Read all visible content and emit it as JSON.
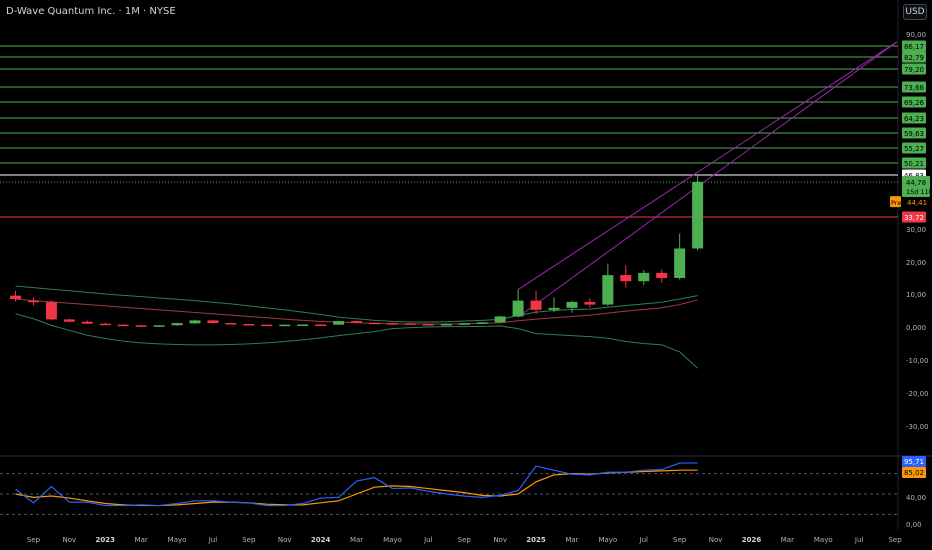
{
  "header": {
    "title": "D-Wave Quantum Inc. · 1M · NYSE",
    "currency_label": "USD"
  },
  "colors": {
    "up": "#4caf50",
    "down": "#f23645",
    "level_line": "#4caf50",
    "resistance_line": "#ffffff",
    "support_line": "#f23645",
    "band_upper_lower": "#2e7d5b",
    "band_mid": "#a33a3a",
    "channel": "#9c27b0",
    "rsi": "#2962ff",
    "rsi_ma": "#ff9800",
    "premarket": "#ff9800"
  },
  "price_axis": {
    "ticks": [
      "90,00",
      "30,00",
      "20,00",
      "10,00",
      "0,000",
      "-10,00",
      "-20,00",
      "-30,00"
    ]
  },
  "level_labels": [
    "86,17",
    "82,79",
    "79,20",
    "73,66",
    "69,26",
    "64,23",
    "59,63",
    "55,27",
    "50,21"
  ],
  "resistance_label": "46,83",
  "last_price": {
    "value": "44,78",
    "countdown": "15d 11h"
  },
  "premarket": {
    "label": "Pre",
    "value": "44,41"
  },
  "support_label": "33,72",
  "x_axis": {
    "labels": [
      "Sep",
      "Nov",
      "2023",
      "Mar",
      "Mayo",
      "Jul",
      "Sep",
      "Nov",
      "2024",
      "Mar",
      "Mayo",
      "Jul",
      "Sep",
      "Nov",
      "2025",
      "Mar",
      "Mayo",
      "Jul",
      "Sep",
      "Nov",
      "2026",
      "Mar",
      "Mayo",
      "Jul",
      "Sep"
    ],
    "bold": [
      "2023",
      "2024",
      "2025",
      "2026"
    ]
  },
  "rsi_panel": {
    "ticks": [
      "40,00",
      "0,00"
    ],
    "value_label": "95,71",
    "ma_label": "85,02"
  },
  "chart_data": {
    "type": "candlestick",
    "title": "D-Wave Quantum Inc. · 1M · NYSE",
    "months": [
      "Aug 2022",
      "Sep 2022",
      "Oct 2022",
      "Nov 2022",
      "Dec 2022",
      "Jan 2023",
      "Feb 2023",
      "Mar 2023",
      "Apr 2023",
      "May 2023",
      "Jun 2023",
      "Jul 2023",
      "Aug 2023",
      "Sep 2023",
      "Oct 2023",
      "Nov 2023",
      "Dec 2023",
      "Jan 2024",
      "Feb 2024",
      "Mar 2024",
      "Apr 2024",
      "May 2024",
      "Jun 2024",
      "Jul 2024",
      "Aug 2024",
      "Sep 2024",
      "Oct 2024",
      "Nov 2024",
      "Dec 2024",
      "Jan 2025",
      "Feb 2025",
      "Mar 2025",
      "Apr 2025",
      "May 2025",
      "Jun 2025",
      "Jul 2025",
      "Aug 2025",
      "Sep 2025",
      "Oct 2025"
    ],
    "ohlc": [
      [
        9.5,
        11.0,
        7.8,
        8.5
      ],
      [
        8.0,
        9.0,
        6.5,
        7.5
      ],
      [
        7.5,
        8.0,
        2.0,
        2.3
      ],
      [
        2.3,
        2.5,
        1.4,
        1.6
      ],
      [
        1.6,
        2.0,
        0.9,
        1.0
      ],
      [
        1.0,
        1.3,
        0.6,
        0.7
      ],
      [
        0.7,
        0.9,
        0.4,
        0.5
      ],
      [
        0.5,
        0.7,
        0.3,
        0.4
      ],
      [
        0.4,
        0.6,
        0.3,
        0.5
      ],
      [
        0.5,
        1.3,
        0.4,
        1.2
      ],
      [
        1.1,
        2.2,
        1.0,
        2.0
      ],
      [
        2.0,
        2.1,
        1.1,
        1.2
      ],
      [
        1.2,
        1.3,
        0.8,
        0.9
      ],
      [
        0.9,
        1.0,
        0.6,
        0.7
      ],
      [
        0.7,
        0.8,
        0.6,
        0.65
      ],
      [
        0.65,
        0.8,
        0.6,
        0.7
      ],
      [
        0.7,
        0.8,
        0.6,
        0.75
      ],
      [
        0.75,
        0.8,
        0.6,
        0.7
      ],
      [
        0.7,
        1.9,
        0.7,
        1.8
      ],
      [
        1.8,
        1.9,
        1.2,
        1.3
      ],
      [
        1.3,
        1.4,
        1.0,
        1.2
      ],
      [
        1.2,
        1.3,
        0.9,
        1.1
      ],
      [
        1.1,
        1.2,
        0.8,
        0.9
      ],
      [
        0.9,
        1.0,
        0.7,
        0.8
      ],
      [
        0.8,
        1.1,
        0.7,
        0.9
      ],
      [
        0.9,
        1.2,
        0.8,
        1.1
      ],
      [
        1.1,
        1.5,
        0.9,
        1.4
      ],
      [
        1.4,
        3.3,
        1.2,
        3.2
      ],
      [
        3.2,
        11.4,
        3.0,
        8.0
      ],
      [
        8.0,
        11.0,
        4.0,
        5.2
      ],
      [
        5.2,
        9.0,
        4.5,
        5.8
      ],
      [
        5.8,
        8.0,
        4.3,
        7.6
      ],
      [
        7.6,
        8.7,
        5.9,
        6.8
      ],
      [
        6.8,
        19.5,
        6.4,
        15.9
      ],
      [
        15.9,
        19.0,
        12.0,
        14.0
      ],
      [
        14.0,
        17.5,
        12.8,
        16.6
      ],
      [
        16.6,
        17.6,
        13.5,
        15.0
      ],
      [
        15.0,
        28.6,
        14.5,
        24.1
      ],
      [
        24.1,
        46.8,
        23.5,
        44.78
      ]
    ],
    "ylim": [
      -35,
      92
    ],
    "resistance_levels": [
      86.17,
      82.79,
      79.2,
      73.66,
      69.26,
      64.23,
      59.63,
      55.27,
      50.21
    ],
    "resistance": 46.83,
    "support": 33.72,
    "last_price": 44.78,
    "premarket_price": 44.41,
    "bollinger": {
      "upper": [
        12.5,
        12.0,
        11.5,
        11.0,
        10.5,
        10.0,
        9.6,
        9.2,
        8.8,
        8.4,
        8.0,
        7.5,
        7.0,
        6.4,
        5.8,
        5.2,
        4.5,
        3.8,
        3.0,
        2.5,
        2.0,
        1.7,
        1.5,
        1.5,
        1.6,
        1.8,
        2.0,
        2.3,
        3.5,
        4.5,
        5.0,
        5.3,
        5.4,
        6.0,
        6.5,
        7.0,
        7.5,
        8.5,
        9.5
      ],
      "middle": [
        8.5,
        8.0,
        7.6,
        7.2,
        6.8,
        6.4,
        6.0,
        5.6,
        5.2,
        4.8,
        4.4,
        4.0,
        3.6,
        3.2,
        2.8,
        2.4,
        2.0,
        1.7,
        1.5,
        1.3,
        1.1,
        1.0,
        0.9,
        0.9,
        0.9,
        1.0,
        1.1,
        1.3,
        1.9,
        2.4,
        2.8,
        3.2,
        3.6,
        4.2,
        4.8,
        5.3,
        5.8,
        6.8,
        8.2
      ],
      "lower": [
        4.0,
        2.5,
        0.5,
        -1.0,
        -2.5,
        -3.5,
        -4.3,
        -4.8,
        -5.1,
        -5.3,
        -5.4,
        -5.4,
        -5.3,
        -5.1,
        -4.8,
        -4.4,
        -3.9,
        -3.3,
        -2.6,
        -2.0,
        -1.4,
        -0.5,
        -0.2,
        0.0,
        0.1,
        0.1,
        0.2,
        0.3,
        -0.5,
        -2.0,
        -2.3,
        -2.6,
        -2.9,
        -3.4,
        -4.4,
        -5.0,
        -5.4,
        -7.5,
        -12.5
      ]
    },
    "rsi": {
      "values": [
        57.0,
        37.0,
        61.0,
        38.0,
        38.0,
        33.0,
        33.0,
        34.0,
        33.0,
        36.0,
        40.0,
        40.0,
        38.0,
        37.0,
        33.0,
        33.0,
        36.0,
        44.0,
        45.0,
        69.0,
        74.0,
        58.0,
        59.0,
        54.0,
        50.0,
        47.0,
        45.0,
        48.0,
        55.0,
        91.0,
        85.0,
        79.0,
        78.0,
        82.0,
        82.0,
        85.0,
        86.0,
        95.5,
        95.71
      ],
      "ma": [
        50.0,
        45.0,
        47.0,
        44.0,
        40.0,
        36.0,
        34.0,
        33.0,
        33.0,
        34.0,
        36.0,
        38.0,
        38.0,
        37.0,
        35.0,
        34.0,
        34.0,
        37.0,
        40.0,
        50.0,
        60.0,
        62.0,
        61.0,
        58.0,
        55.0,
        52.0,
        48.0,
        47.0,
        50.0,
        68.0,
        78.0,
        80.0,
        79.0,
        81.0,
        82.0,
        83.0,
        84.0,
        85.0,
        85.02
      ],
      "ylim": [
        0,
        100
      ]
    }
  }
}
